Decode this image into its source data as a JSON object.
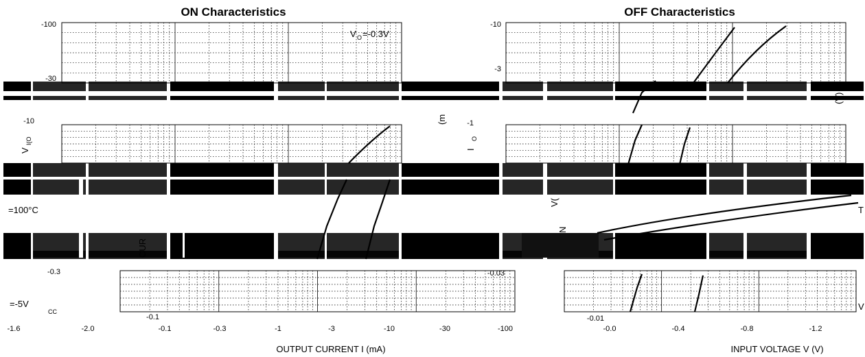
{
  "chart_data": [
    {
      "type": "line",
      "title": "ON Characteristics",
      "xlabel": "OUTPUT CURRENT   I      (mA)",
      "ylabel_visible": [
        "V",
        "I(O"
      ],
      "y_tick_labels": [
        "-100",
        "-30",
        "-10",
        "-0.3",
        "-0.1"
      ],
      "x_tick_labels": [
        "-0.1",
        "-0.3",
        "-1",
        "-3",
        "-10",
        "-30",
        "-100"
      ],
      "extra_x_tick_labels": [
        "-1.6",
        "-2.0"
      ],
      "annotations": [
        "V",
        "O",
        "=-0.3V",
        "=100°C",
        "=-5V",
        "CC"
      ],
      "axis_fragments": [
        "OUTPUT CURRENT",
        "CUR"
      ],
      "scale": "log-log",
      "grid": true,
      "series": [
        {
          "x": [
            -5,
            -7,
            -10,
            -14
          ],
          "y": [
            -25,
            -15,
            -9,
            -5
          ]
        },
        {
          "x": [
            -3,
            -5,
            -8,
            -12
          ],
          "y": [
            -0.6,
            -0.3,
            -0.15,
            -0.1
          ]
        }
      ]
    },
    {
      "type": "line",
      "title": "OFF Characteristics",
      "xlabel": "INPUT VOLTAGE    V        (V)",
      "ylabel_visible": [
        "I",
        "O",
        "(m"
      ],
      "y_tick_labels": [
        "-10",
        "-3",
        "-1",
        "-0.03",
        "-0.01"
      ],
      "x_tick_labels": [
        "-0.0",
        "-0.4",
        "-0.8",
        "-1.2"
      ],
      "annotations": [
        "(V)",
        "V",
        "T",
        "V(",
        "N"
      ],
      "scale": "lin-log",
      "grid": true,
      "series": [
        {
          "x": [
            -0.2,
            -0.4,
            -0.6,
            -0.8
          ],
          "y": [
            -0.02,
            -1,
            -4,
            -9
          ]
        },
        {
          "x": [
            -0.5,
            -0.65,
            -0.8,
            -0.95
          ],
          "y": [
            -0.02,
            -1,
            -4,
            -9
          ]
        }
      ]
    }
  ]
}
